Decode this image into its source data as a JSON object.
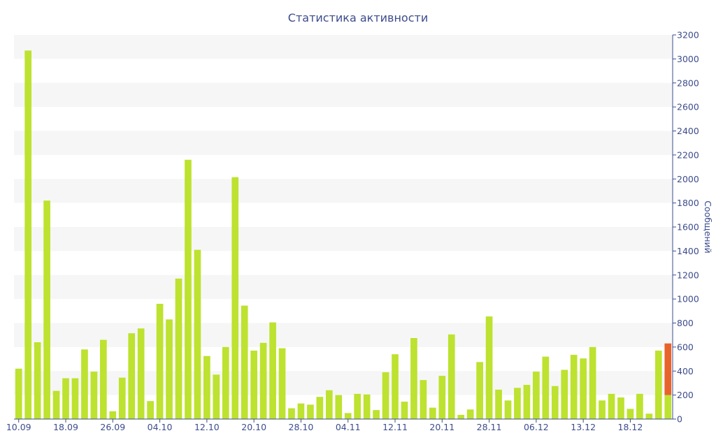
{
  "chart_data": {
    "type": "bar",
    "title": "Статистика активности",
    "xlabel": "",
    "ylabel": "Сообщений",
    "ylim": [
      0,
      3200
    ],
    "yticks": [
      0,
      200,
      400,
      600,
      800,
      1000,
      1200,
      1400,
      1600,
      1800,
      2000,
      2200,
      2400,
      2600,
      2800,
      3000,
      3200
    ],
    "y_axis_side": "right",
    "grid": "alternating horizontal bands",
    "legend": "none",
    "x_tick_labels": [
      {
        "label": "10.09",
        "index": 0
      },
      {
        "label": "18.09",
        "index": 5
      },
      {
        "label": "26.09",
        "index": 10
      },
      {
        "label": "04.10",
        "index": 15
      },
      {
        "label": "12.10",
        "index": 20
      },
      {
        "label": "20.10",
        "index": 25
      },
      {
        "label": "28.10",
        "index": 30
      },
      {
        "label": "04.11",
        "index": 35
      },
      {
        "label": "12.11",
        "index": 40
      },
      {
        "label": "20.11",
        "index": 45
      },
      {
        "label": "28.11",
        "index": 50
      },
      {
        "label": "06.12",
        "index": 55
      },
      {
        "label": "13.12",
        "index": 60
      },
      {
        "label": "18.12",
        "index": 65
      }
    ],
    "colors": {
      "bar": "#bde22f",
      "highlight": "#e8622c",
      "axis": "#3c4c8c",
      "band": "#f6f6f6"
    },
    "series": [
      {
        "values": [
          420,
          3070,
          640,
          1820,
          235,
          340,
          340,
          580,
          395,
          660,
          65,
          345,
          715,
          755,
          150,
          960,
          830,
          1170,
          2160,
          1410,
          525,
          370,
          600,
          2015,
          945,
          570,
          635,
          805,
          590,
          90,
          130,
          120,
          185,
          240,
          200,
          50,
          210,
          205,
          75,
          390,
          540,
          145,
          675,
          325,
          95,
          360,
          705,
          35,
          80,
          475,
          855,
          245,
          155,
          260,
          285,
          395,
          520,
          275,
          410,
          535,
          505,
          600,
          155,
          210,
          180,
          85,
          210,
          45,
          570,
          200
        ]
      },
      {
        "stacked_on_last_bar": true,
        "values": [
          430
        ]
      }
    ]
  }
}
